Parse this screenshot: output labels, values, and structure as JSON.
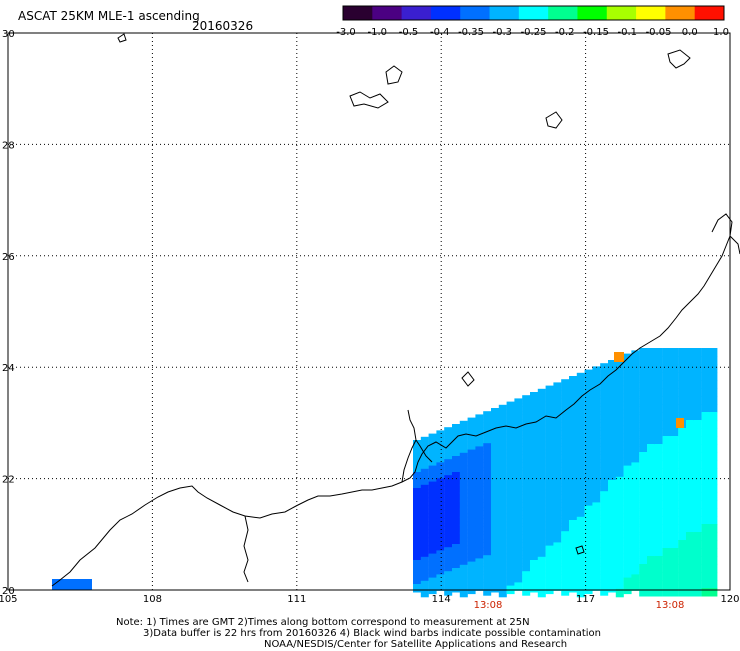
{
  "header": {
    "title": "ASCAT 25KM MLE-1 ascending",
    "date": "20160326"
  },
  "colorbar": {
    "labels": [
      "-3.0",
      "-1.0",
      "-0.5",
      "-0.4",
      "-0.35",
      "-0.3",
      "-0.25",
      "-0.2",
      "-0.15",
      "-0.1",
      "-0.05",
      "0.0",
      "1.0"
    ],
    "colors": [
      "#2a0030",
      "#4b0082",
      "#3a1fd0",
      "#0030ff",
      "#0070ff",
      "#00b4ff",
      "#00ffff",
      "#00ff90",
      "#00ff00",
      "#a8ff00",
      "#ffff00",
      "#ff9000",
      "#ff1000"
    ]
  },
  "map": {
    "lon_range": [
      105,
      120
    ],
    "lat_range": [
      20,
      30
    ],
    "lon_ticks": [
      "105",
      "108",
      "111",
      "114",
      "117",
      "120"
    ],
    "lat_ticks": [
      "20",
      "22",
      "24",
      "26",
      "28",
      "30"
    ],
    "grid": "dotted",
    "pass_times": [
      "13:08",
      "13:08"
    ],
    "pass_time_color": "#cc2200"
  },
  "notes": {
    "line1": "Note: 1) Times are GMT 2)Times along bottom correspond to measurement at 25N",
    "line2": "3)Data buffer is 22 hrs from 20160326 4) Black wind barbs indicate possible contamination",
    "line3": "NOAA/NESDIS/Center for Satellite Applications and Research"
  }
}
